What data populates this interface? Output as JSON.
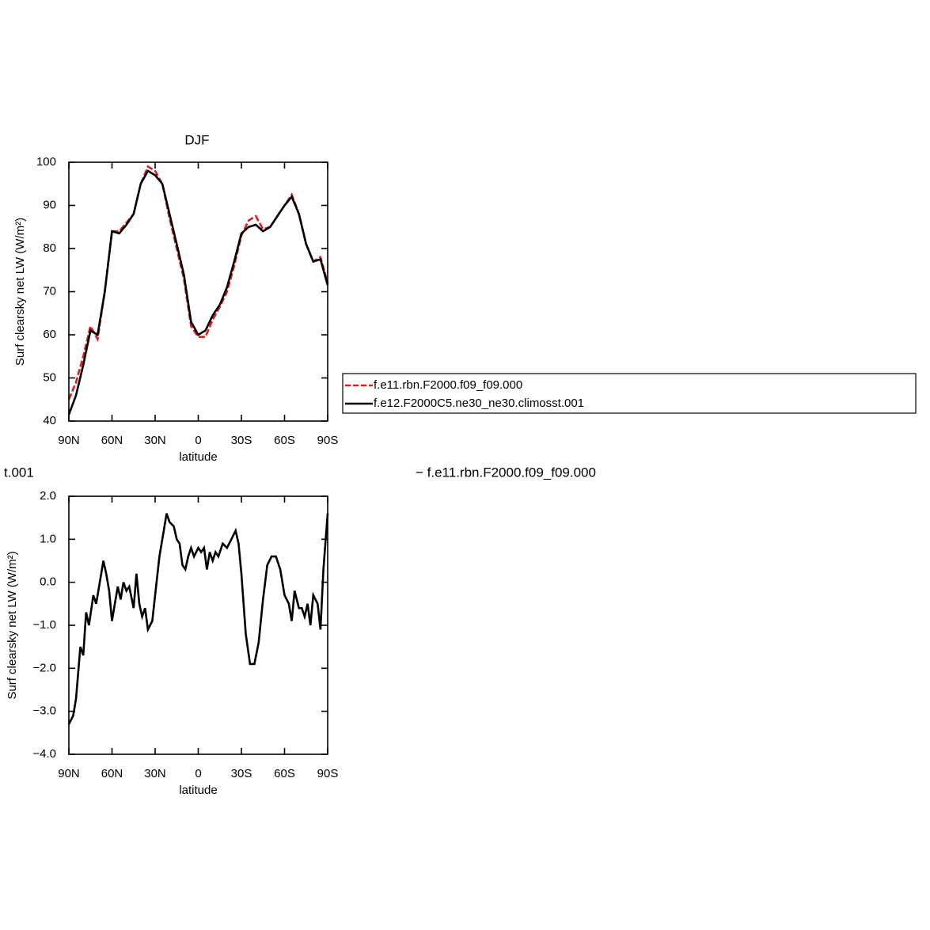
{
  "chart_data": [
    {
      "type": "line",
      "title": "DJF",
      "xlabel": "latitude",
      "ylabel": "Surf clearsky net LW (W/m²)",
      "x": [
        90,
        85,
        80,
        75,
        70,
        65,
        60,
        55,
        50,
        45,
        40,
        35,
        30,
        25,
        20,
        15,
        10,
        5,
        0,
        -5,
        -10,
        -15,
        -20,
        -25,
        -30,
        -35,
        -40,
        -45,
        -50,
        -55,
        -60,
        -65,
        -70,
        -75,
        -80,
        -85,
        -90
      ],
      "series": [
        {
          "name": "f.e11.rbn.F2000.f09_f09.000",
          "color": "#e41a1c",
          "dashed": true,
          "values": [
            45,
            49,
            55,
            62,
            59,
            70,
            84,
            84,
            86,
            88,
            95,
            99,
            98,
            95,
            87,
            80,
            73,
            62,
            59.5,
            59.5,
            63.5,
            66.5,
            70,
            76,
            83,
            86.5,
            87.5,
            84.5,
            85,
            87.5,
            90,
            92.5,
            88,
            81,
            77,
            78,
            72
          ]
        },
        {
          "name": "f.e12.F2000C5.ne30_ne30.climosst.001",
          "color": "#000000",
          "dashed": false,
          "values": [
            41.5,
            46,
            53,
            61,
            60,
            70,
            84,
            83.5,
            85.5,
            88,
            95,
            98,
            97,
            95,
            88,
            81,
            74,
            63,
            60,
            61,
            64.5,
            67,
            71,
            77,
            83.5,
            85,
            85.5,
            84,
            85,
            87.5,
            90,
            92,
            88,
            81,
            77,
            77.5,
            71.5
          ]
        }
      ],
      "xlim": [
        90,
        -90
      ],
      "xticks": [
        {
          "value": 90,
          "label": "90N"
        },
        {
          "value": 60,
          "label": "60N"
        },
        {
          "value": 30,
          "label": "30N"
        },
        0,
        {
          "value": -30,
          "label": "30S"
        },
        {
          "value": -60,
          "label": "60S"
        },
        {
          "value": -90,
          "label": "90S"
        }
      ],
      "ylim": [
        40,
        100
      ],
      "yticks": [
        40,
        50,
        60,
        70,
        80,
        90,
        100
      ]
    },
    {
      "type": "line",
      "title_left": "t.001",
      "title_right": "− f.e11.rbn.F2000.f09_f09.000",
      "xlabel": "latitude",
      "ylabel": "Surf clearsky net LW (W/m²)",
      "x": [
        90,
        87,
        85,
        82,
        80,
        78,
        76,
        73,
        71,
        68,
        66,
        64,
        62,
        60,
        58,
        56,
        54,
        52,
        50,
        48,
        45,
        43,
        41,
        39,
        37,
        35,
        32,
        30,
        27,
        24,
        22,
        20,
        17,
        15,
        13,
        11,
        9,
        7,
        5,
        3,
        0,
        -2,
        -4,
        -6,
        -8,
        -10,
        -12,
        -14,
        -17,
        -20,
        -23,
        -26,
        -28,
        -30,
        -33,
        -36,
        -39,
        -42,
        -45,
        -48,
        -51,
        -54,
        -57,
        -60,
        -63,
        -65,
        -67,
        -70,
        -72,
        -74,
        -76,
        -78,
        -80,
        -83,
        -85,
        -87,
        -90
      ],
      "values": [
        -3.3,
        -3.1,
        -2.7,
        -1.5,
        -1.7,
        -0.7,
        -1.0,
        -0.3,
        -0.5,
        0.1,
        0.5,
        0.2,
        -0.2,
        -0.9,
        -0.5,
        -0.1,
        -0.4,
        0.0,
        -0.2,
        -0.1,
        -0.6,
        0.2,
        -0.5,
        -0.8,
        -0.6,
        -1.1,
        -0.9,
        -0.3,
        0.6,
        1.2,
        1.6,
        1.4,
        1.3,
        1.0,
        0.9,
        0.4,
        0.3,
        0.6,
        0.8,
        0.6,
        0.8,
        0.7,
        0.8,
        0.3,
        0.7,
        0.5,
        0.7,
        0.6,
        0.9,
        0.8,
        1.0,
        1.2,
        0.9,
        0.2,
        -1.2,
        -1.9,
        -1.9,
        -1.4,
        -0.4,
        0.4,
        0.6,
        0.6,
        0.3,
        -0.3,
        -0.5,
        -0.9,
        -0.2,
        -0.6,
        -0.6,
        -0.8,
        -0.5,
        -1.0,
        -0.3,
        -0.5,
        -1.1,
        0.3,
        1.6
      ],
      "color": "#000000",
      "xlim": [
        90,
        -90
      ],
      "xticks": [
        {
          "value": 90,
          "label": "90N"
        },
        {
          "value": 60,
          "label": "60N"
        },
        {
          "value": 30,
          "label": "30N"
        },
        0,
        {
          "value": -30,
          "label": "30S"
        },
        {
          "value": -60,
          "label": "60S"
        },
        {
          "value": -90,
          "label": "90S"
        }
      ],
      "ylim": [
        -4,
        2
      ],
      "yticks": [
        {
          "value": -4,
          "label": "−4.0"
        },
        {
          "value": -3,
          "label": "−3.0"
        },
        {
          "value": -2,
          "label": "−2.0"
        },
        {
          "value": -1,
          "label": "−1.0"
        },
        {
          "value": 0,
          "label": "0.0"
        },
        {
          "value": 1,
          "label": "1.0"
        },
        {
          "value": 2,
          "label": "2.0"
        }
      ]
    }
  ]
}
